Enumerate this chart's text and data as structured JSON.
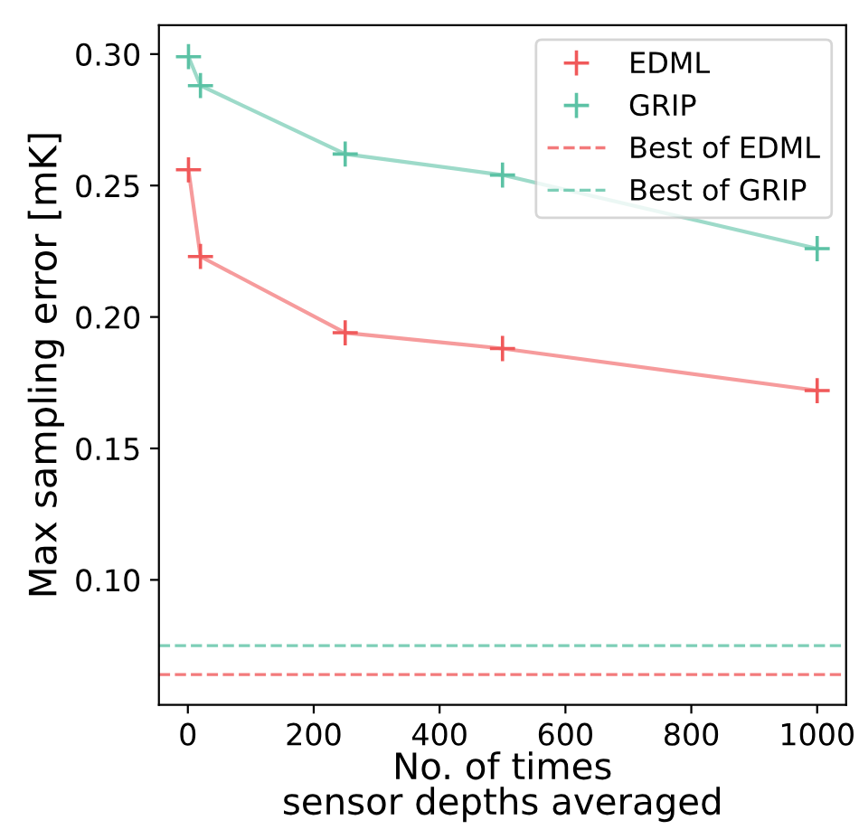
{
  "chart_data": {
    "type": "line",
    "xlabel": "No. of times\nsensor depths averaged",
    "ylabel": "Max sampling error [mK]",
    "x": [
      1,
      20,
      250,
      500,
      1000
    ],
    "series": [
      {
        "name": "EDML",
        "color": "#f0595a",
        "values": [
          0.256,
          0.223,
          0.194,
          0.188,
          0.172
        ]
      },
      {
        "name": "GRIP",
        "color": "#5cc2a5",
        "values": [
          0.299,
          0.288,
          0.262,
          0.254,
          0.226
        ]
      }
    ],
    "ref_lines": [
      {
        "axis": "y",
        "value": 0.064,
        "label": "Best of EDML",
        "color": "#f0595a",
        "line_style": "dashed"
      },
      {
        "axis": "y",
        "value": 0.075,
        "label": "Best of GRIP",
        "color": "#5cc2a5",
        "line_style": "dashed"
      }
    ],
    "xlim": [
      -46,
      1046
    ],
    "xticks": [
      0,
      200,
      400,
      600,
      800,
      1000
    ],
    "ylim": [
      0.0525,
      0.311
    ],
    "yticks": [
      {
        "value": 0.1,
        "label": "0.10"
      },
      {
        "value": 0.15,
        "label": "0.15"
      },
      {
        "value": 0.2,
        "label": "0.20"
      },
      {
        "value": 0.25,
        "label": "0.25"
      },
      {
        "value": 0.3,
        "label": "0.30"
      }
    ],
    "marker": "cross",
    "line_style": "solid",
    "grid": false,
    "legend": "top right"
  }
}
